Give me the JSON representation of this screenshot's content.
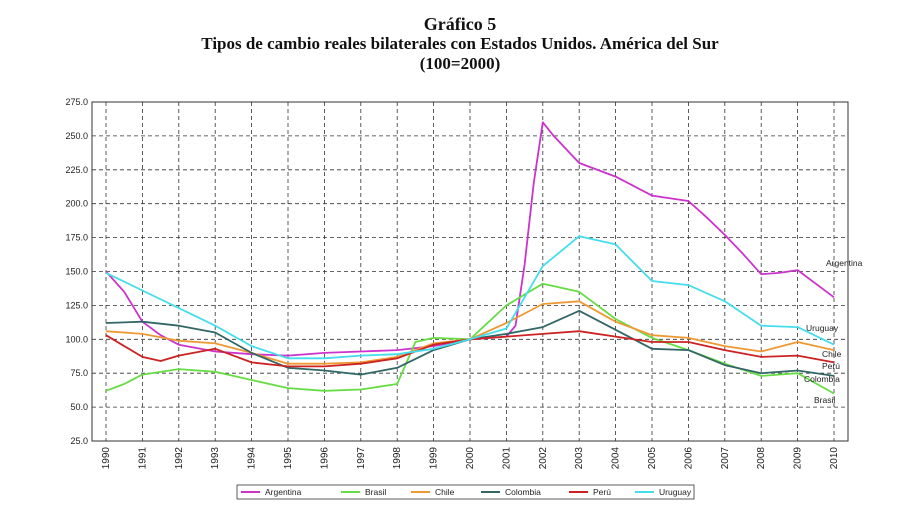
{
  "chart_data": {
    "type": "line",
    "title": "Gráfico 5",
    "subtitle": "Tipos de cambio reales bilaterales con Estados Unidos. América del Sur",
    "subtitle2": "(100=2000)",
    "xlabel": "",
    "ylabel": "",
    "ylim": [
      25,
      275
    ],
    "yticks": [
      "275.0",
      "250.0",
      "225.0",
      "200.0",
      "175.0",
      "150.0",
      "125.0",
      "100.0",
      "75.0",
      "50.0",
      "25.0"
    ],
    "xlim": [
      1990,
      2010
    ],
    "xticks": [
      "1990",
      "1991",
      "1992",
      "1993",
      "1994",
      "1995",
      "1996",
      "1997",
      "1998",
      "1999",
      "2000",
      "2001",
      "2002",
      "2003",
      "2004",
      "2005",
      "2006",
      "2007",
      "2008",
      "2009",
      "2010"
    ],
    "grid": true,
    "legend_position": "bottom",
    "series": [
      {
        "name": "Argentina",
        "color": "#cc33cc",
        "label": "Argentina",
        "points": [
          [
            1990,
            150
          ],
          [
            1990.5,
            135
          ],
          [
            1991,
            113
          ],
          [
            1991.5,
            103
          ],
          [
            1992,
            96
          ],
          [
            1993,
            91
          ],
          [
            1994,
            89
          ],
          [
            1995,
            88
          ],
          [
            1996,
            90
          ],
          [
            1997,
            91
          ],
          [
            1998,
            92
          ],
          [
            1999,
            95
          ],
          [
            2000,
            100
          ],
          [
            2001,
            102
          ],
          [
            2001.25,
            110
          ],
          [
            2001.5,
            155
          ],
          [
            2001.75,
            215
          ],
          [
            2002,
            260
          ],
          [
            2002.3,
            250
          ],
          [
            2003,
            230
          ],
          [
            2004,
            220
          ],
          [
            2004.5,
            213
          ],
          [
            2005,
            206
          ],
          [
            2006,
            202
          ],
          [
            2006.5,
            190
          ],
          [
            2007,
            177
          ],
          [
            2007.5,
            163
          ],
          [
            2008,
            148
          ],
          [
            2008.5,
            149
          ],
          [
            2009,
            151
          ],
          [
            2009.5,
            141
          ],
          [
            2010,
            131
          ]
        ]
      },
      {
        "name": "Brasil",
        "color": "#66dd44",
        "label": "Brasil",
        "points": [
          [
            1990,
            62
          ],
          [
            1990.5,
            67
          ],
          [
            1991,
            74
          ],
          [
            1992,
            78
          ],
          [
            1993,
            76
          ],
          [
            1994,
            70
          ],
          [
            1995,
            64
          ],
          [
            1996,
            62
          ],
          [
            1997,
            63
          ],
          [
            1998,
            67
          ],
          [
            1998.5,
            98
          ],
          [
            1999,
            101
          ],
          [
            2000,
            100
          ],
          [
            2001,
            125
          ],
          [
            2002,
            141
          ],
          [
            2003,
            135
          ],
          [
            2004,
            115
          ],
          [
            2005,
            101
          ],
          [
            2006,
            92
          ],
          [
            2007,
            82
          ],
          [
            2008,
            73
          ],
          [
            2009,
            75
          ],
          [
            2010,
            60
          ]
        ]
      },
      {
        "name": "Chile",
        "color": "#ee9933",
        "label": "Chile",
        "points": [
          [
            1990,
            106
          ],
          [
            1991,
            104
          ],
          [
            1992,
            99
          ],
          [
            1993,
            97
          ],
          [
            1994,
            90
          ],
          [
            1995,
            82
          ],
          [
            1996,
            82
          ],
          [
            1997,
            83
          ],
          [
            1998,
            87
          ],
          [
            1999,
            97
          ],
          [
            2000,
            100
          ],
          [
            2001,
            112
          ],
          [
            2002,
            126
          ],
          [
            2003,
            128
          ],
          [
            2004,
            113
          ],
          [
            2005,
            103
          ],
          [
            2006,
            101
          ],
          [
            2007,
            95
          ],
          [
            2008,
            91
          ],
          [
            2009,
            98
          ],
          [
            2010,
            92
          ]
        ]
      },
      {
        "name": "Colombia",
        "color": "#336666",
        "label": "Colombia",
        "points": [
          [
            1990,
            112
          ],
          [
            1991,
            113
          ],
          [
            1992,
            110
          ],
          [
            1993,
            105
          ],
          [
            1994,
            90
          ],
          [
            1995,
            79
          ],
          [
            1996,
            77
          ],
          [
            1997,
            74
          ],
          [
            1998,
            79
          ],
          [
            1999,
            92
          ],
          [
            2000,
            100
          ],
          [
            2001,
            104
          ],
          [
            2002,
            109
          ],
          [
            2003,
            121
          ],
          [
            2004,
            107
          ],
          [
            2005,
            93
          ],
          [
            2006,
            92
          ],
          [
            2007,
            81
          ],
          [
            2008,
            75
          ],
          [
            2009,
            77
          ],
          [
            2010,
            73
          ]
        ]
      },
      {
        "name": "Perú",
        "color": "#cc2222",
        "label": "Perú",
        "points": [
          [
            1990,
            103
          ],
          [
            1991,
            87
          ],
          [
            1991.5,
            84
          ],
          [
            1992,
            88
          ],
          [
            1993,
            93
          ],
          [
            1994,
            83
          ],
          [
            1995,
            80
          ],
          [
            1996,
            80
          ],
          [
            1997,
            82
          ],
          [
            1998,
            86
          ],
          [
            1999,
            96
          ],
          [
            2000,
            100
          ],
          [
            2001,
            102
          ],
          [
            2002,
            104
          ],
          [
            2003,
            106
          ],
          [
            2004,
            102
          ],
          [
            2005,
            98
          ],
          [
            2006,
            98
          ],
          [
            2007,
            92
          ],
          [
            2008,
            87
          ],
          [
            2009,
            88
          ],
          [
            2010,
            83
          ]
        ]
      },
      {
        "name": "Uruguay",
        "color": "#44ddee",
        "label": "Uruguay",
        "points": [
          [
            1990,
            149
          ],
          [
            1991,
            136
          ],
          [
            1992,
            123
          ],
          [
            1993,
            110
          ],
          [
            1994,
            95
          ],
          [
            1995,
            86
          ],
          [
            1996,
            86
          ],
          [
            1997,
            88
          ],
          [
            1998,
            89
          ],
          [
            1999,
            93
          ],
          [
            2000,
            100
          ],
          [
            2001,
            108
          ],
          [
            2002,
            154
          ],
          [
            2003,
            176
          ],
          [
            2004,
            170
          ],
          [
            2005,
            143
          ],
          [
            2006,
            140
          ],
          [
            2007,
            128
          ],
          [
            2008,
            110
          ],
          [
            2009,
            109
          ],
          [
            2010,
            96
          ]
        ]
      }
    ]
  }
}
